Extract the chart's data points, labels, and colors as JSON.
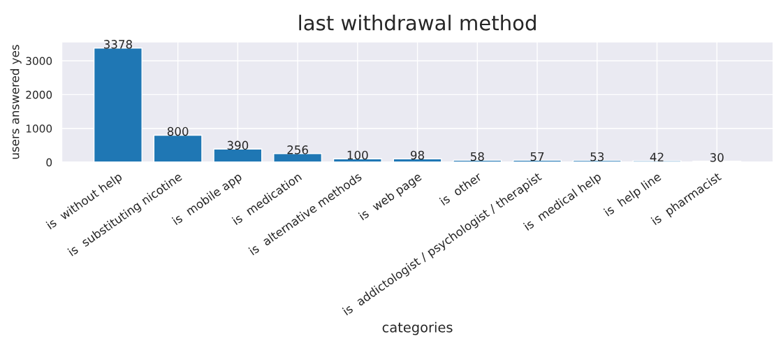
{
  "chart_data": {
    "type": "bar",
    "title": "last withdrawal method",
    "xlabel": "categories",
    "ylabel": "users answered yes",
    "categories": [
      "is  without help",
      "is  substituting nicotine",
      "is  mobile app",
      "is  medication",
      "is  alternative methods",
      "is  web page",
      "is  other",
      "is  addictologist / psychologist / therapist",
      "is  medical help",
      "is  help line",
      "is  pharmacist"
    ],
    "values": [
      3378,
      800,
      390,
      256,
      100,
      98,
      58,
      57,
      53,
      42,
      30
    ],
    "color": "#1f77b4",
    "ylim": [
      0,
      3560
    ],
    "yticks": [
      0,
      1000,
      2000,
      3000
    ],
    "grid": true,
    "data_labels": true
  }
}
